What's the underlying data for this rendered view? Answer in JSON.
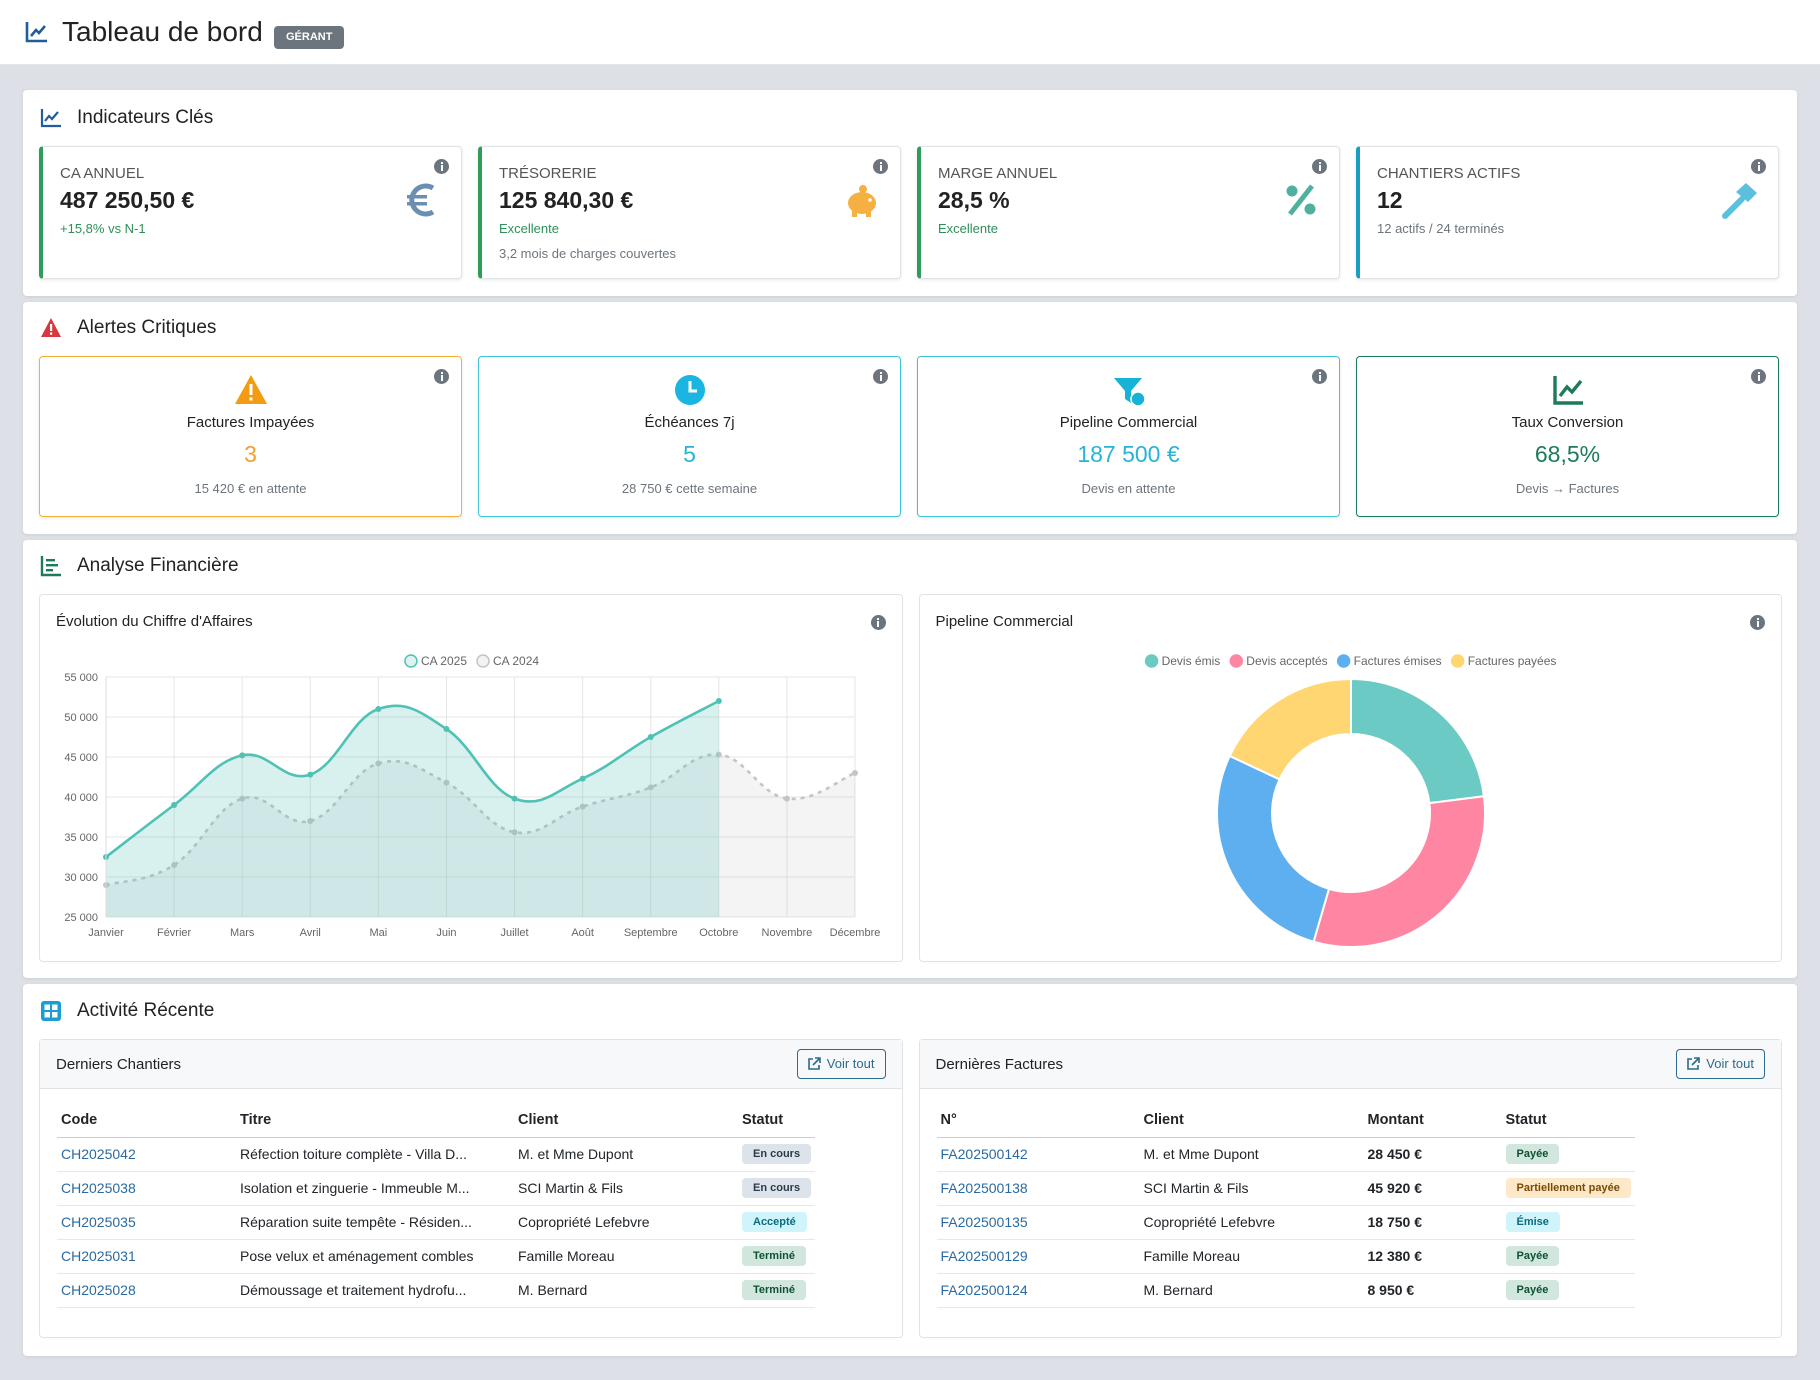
{
  "header": {
    "title": "Tableau de bord",
    "badge": "GÉRANT"
  },
  "kpi": {
    "title": "Indicateurs Clés",
    "cards": [
      {
        "label": "CA ANNUEL",
        "value": "487 250,50 €",
        "note": "+15,8% vs N-1"
      },
      {
        "label": "TRÉSORERIE",
        "value": "125 840,30 €",
        "note": "Excellente",
        "detail": "3,2 mois de charges couvertes"
      },
      {
        "label": "MARGE ANNUEL",
        "value": "28,5 %",
        "note": "Excellente"
      },
      {
        "label": "CHANTIERS ACTIFS",
        "value": "12",
        "note": "12 actifs / 24 terminés"
      }
    ]
  },
  "alerts": {
    "title": "Alertes Critiques",
    "cards": [
      {
        "label": "Factures Impayées",
        "value": "3",
        "note": "15 420 € en attente"
      },
      {
        "label": "Échéances 7j",
        "value": "5",
        "note": "28 750 € cette semaine"
      },
      {
        "label": "Pipeline Commercial",
        "value": "187 500 €",
        "note": "Devis en attente"
      },
      {
        "label": "Taux Conversion",
        "value": "68,5%",
        "note": "Devis → Factures"
      }
    ]
  },
  "analysis": {
    "title": "Analyse Financière"
  },
  "chart_data": [
    {
      "type": "line",
      "title": "Évolution du Chiffre d'Affaires",
      "categories": [
        "Janvier",
        "Février",
        "Mars",
        "Avril",
        "Mai",
        "Juin",
        "Juillet",
        "Août",
        "Septembre",
        "Octobre",
        "Novembre",
        "Décembre"
      ],
      "series": [
        {
          "name": "CA 2025",
          "color": "#4fc1b5",
          "values": [
            32500,
            39000,
            45200,
            42800,
            51000,
            48500,
            39800,
            42300,
            47500,
            52000,
            null,
            null
          ]
        },
        {
          "name": "CA 2024",
          "color": "#c4c4c8",
          "dashed": true,
          "values": [
            29000,
            31500,
            39800,
            37000,
            44200,
            41800,
            35600,
            38800,
            41200,
            45300,
            39800,
            43000
          ]
        }
      ],
      "ylim": [
        25000,
        55000
      ],
      "yticks": [
        {
          "value": 25000,
          "label": "25 000"
        },
        {
          "value": 30000,
          "label": "30 000"
        },
        {
          "value": 35000,
          "label": "35 000"
        },
        {
          "value": 40000,
          "label": "40 000"
        },
        {
          "value": 45000,
          "label": "45 000"
        },
        {
          "value": 50000,
          "label": "50 000"
        },
        {
          "value": 55000,
          "label": "55 000"
        }
      ],
      "grid": true,
      "fill": true
    },
    {
      "type": "doughnut",
      "title": "Pipeline Commercial",
      "categories": [
        "Devis émis",
        "Devis acceptés",
        "Factures émises",
        "Factures payées"
      ],
      "colors": [
        "#6ccac4",
        "#ff86a2",
        "#5daff0",
        "#ffd672"
      ],
      "values": [
        23,
        31.5,
        27.5,
        18
      ]
    }
  ],
  "activity": {
    "title": "Activité Récente",
    "chantiers": {
      "title": "Derniers Chantiers",
      "button": "Voir tout",
      "columns": [
        "Code",
        "Titre",
        "Client",
        "Statut"
      ],
      "rows": [
        [
          "CH2025042",
          "Réfection toiture complète - Villa D...",
          "M. et Mme Dupont",
          "En cours"
        ],
        [
          "CH2025038",
          "Isolation et zinguerie - Immeuble M...",
          "SCI Martin & Fils",
          "En cours"
        ],
        [
          "CH2025035",
          "Réparation suite tempête - Résiden...",
          "Copropriété Lefebvre",
          "Accepté"
        ],
        [
          "CH2025031",
          "Pose velux et aménagement combles",
          "Famille Moreau",
          "Terminé"
        ],
        [
          "CH2025028",
          "Démoussage et traitement hydrofu...",
          "M. Bernard",
          "Terminé"
        ]
      ]
    },
    "factures": {
      "title": "Dernières Factures",
      "button": "Voir tout",
      "columns": [
        "N°",
        "Client",
        "Montant",
        "Statut"
      ],
      "rows": [
        [
          "FA202500142",
          "M. et Mme Dupont",
          "28 450 €",
          "Payée"
        ],
        [
          "FA202500138",
          "SCI Martin & Fils",
          "45 920 €",
          "Partiellement payée"
        ],
        [
          "FA202500135",
          "Copropriété Lefebvre",
          "18 750 €",
          "Émise"
        ],
        [
          "FA202500129",
          "Famille Moreau",
          "12 380 €",
          "Payée"
        ],
        [
          "FA202500124",
          "M. Bernard",
          "8 950 €",
          "Payée"
        ]
      ]
    }
  }
}
